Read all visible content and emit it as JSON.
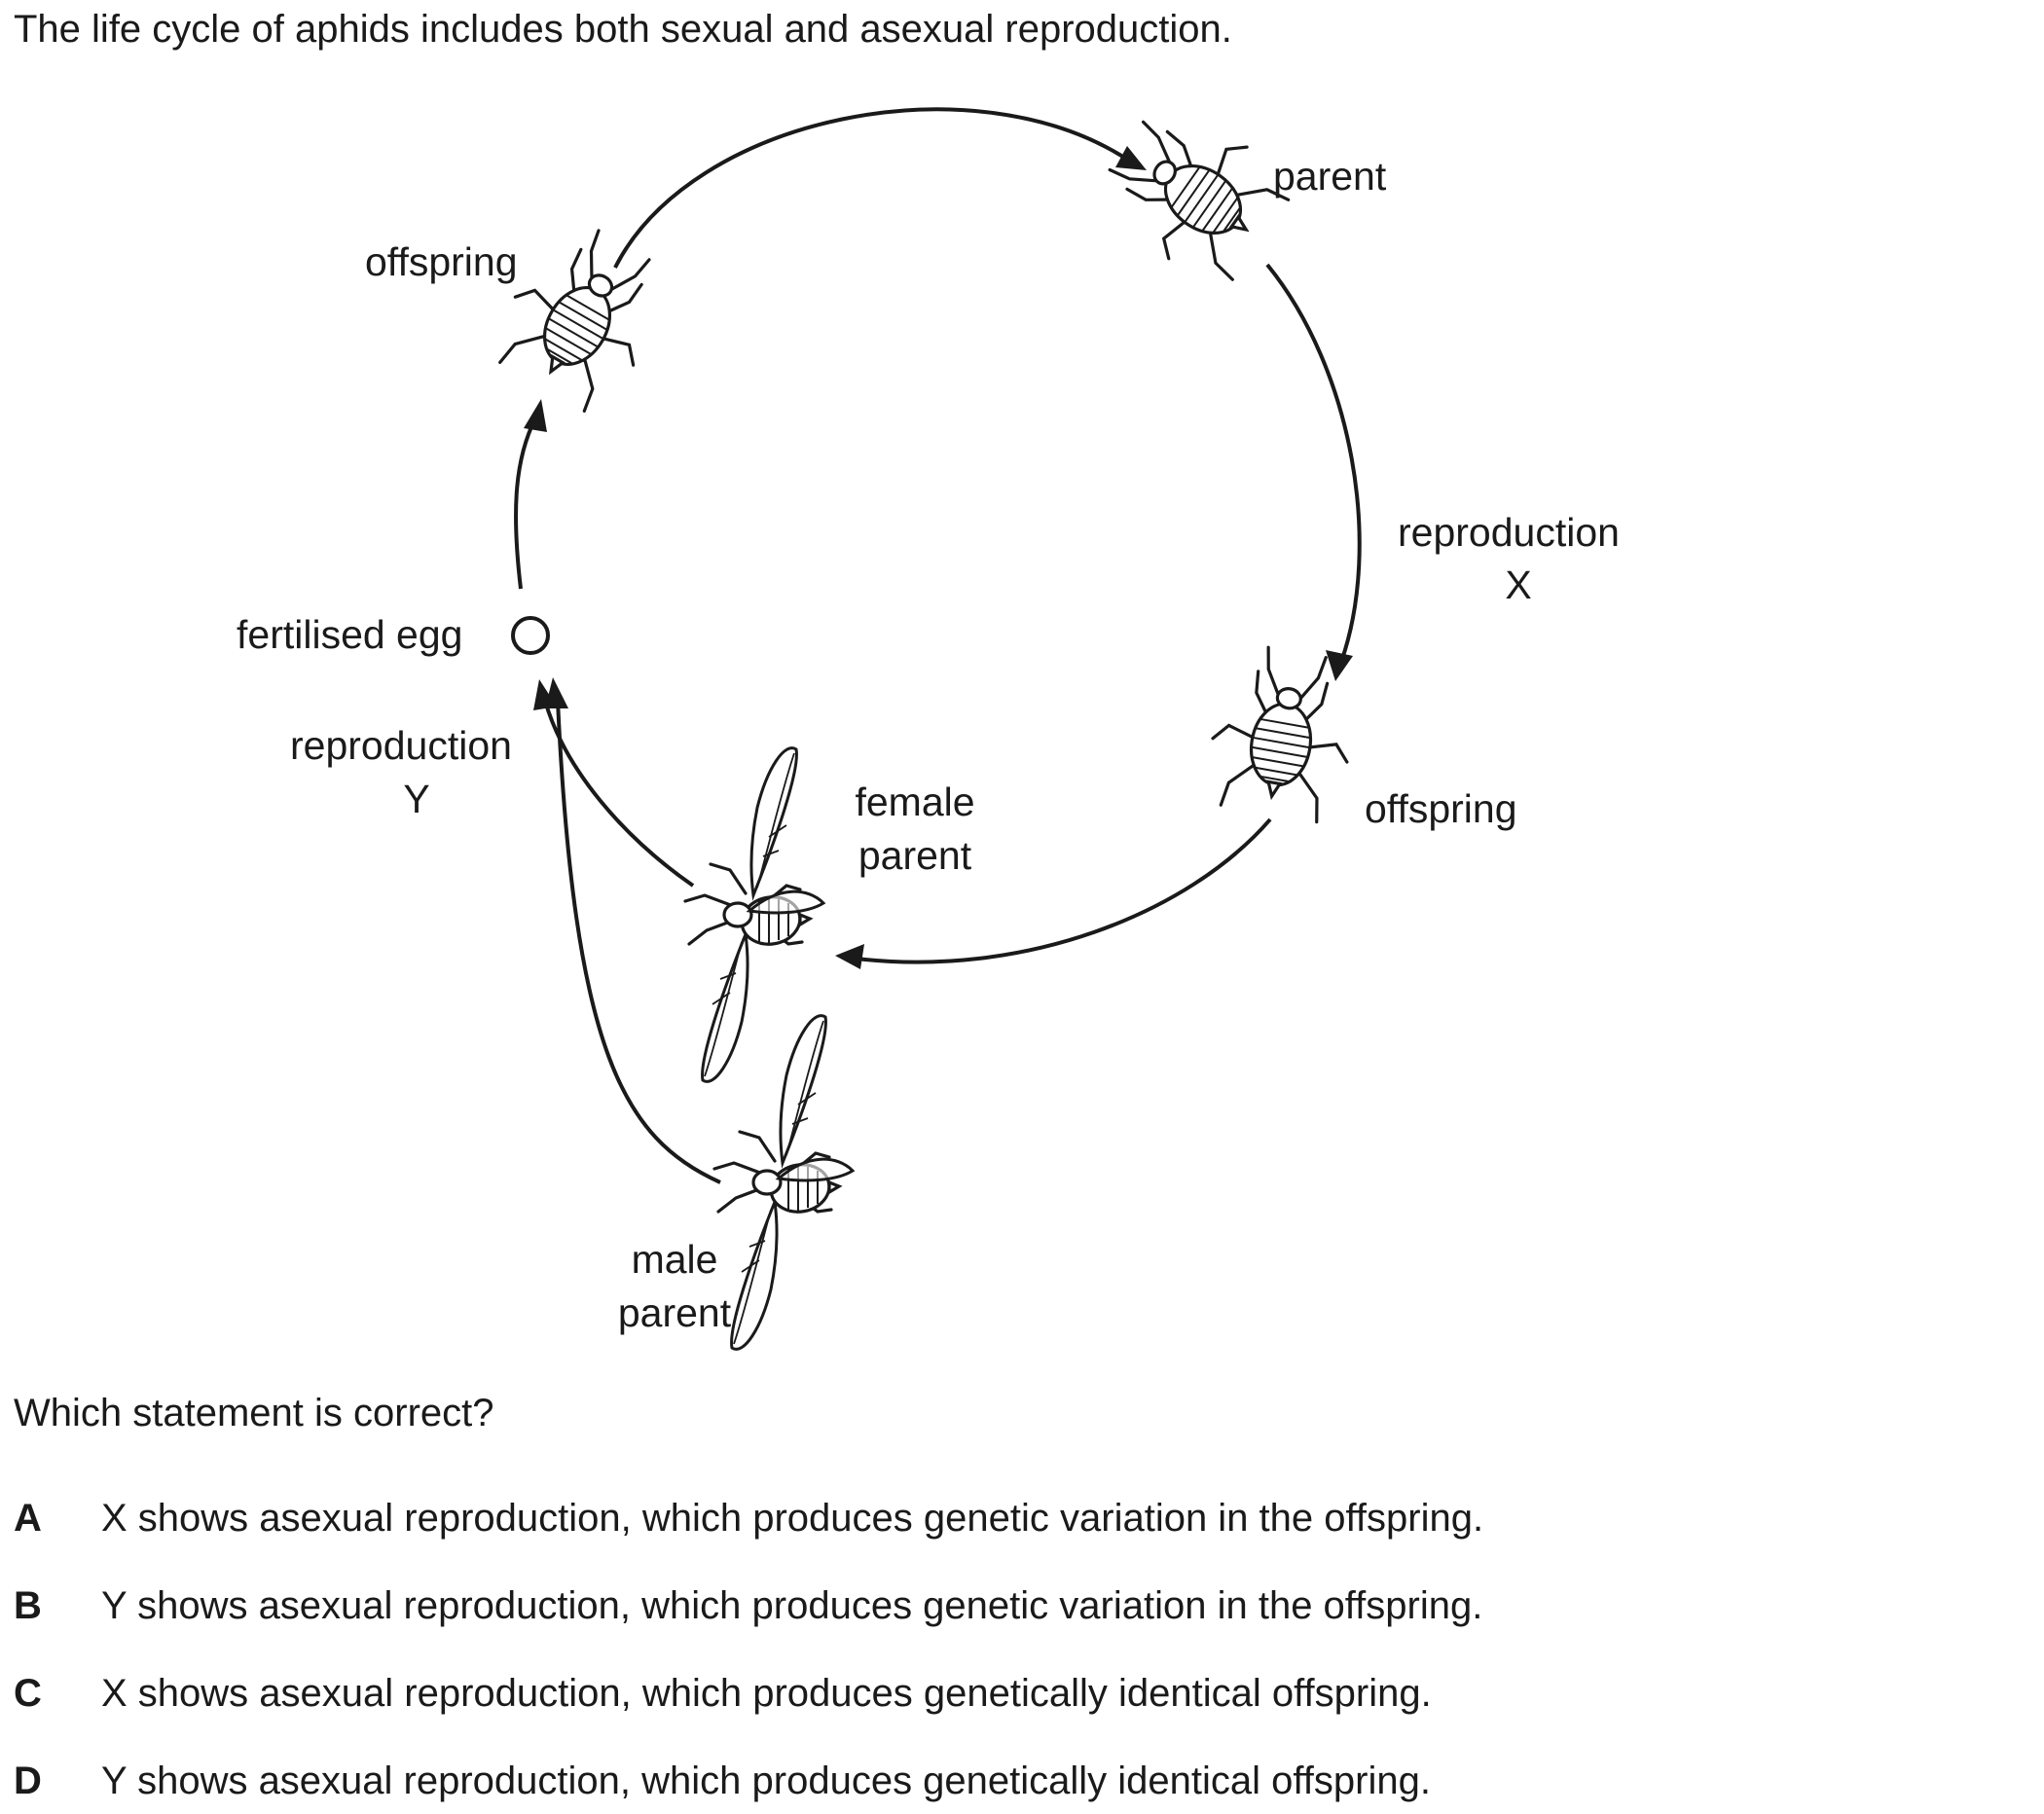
{
  "intro": "The life cycle of aphids includes both sexual and asexual reproduction.",
  "diagram": {
    "labels": {
      "parent": "parent",
      "offspring_top": "offspring",
      "offspring_right": "offspring",
      "reproduction_x": "reproduction",
      "x": "X",
      "fertilised_egg": "fertilised egg",
      "reproduction_y": "reproduction",
      "y": "Y",
      "female_1": "female",
      "female_2": "parent",
      "male_1": "male",
      "male_2": "parent"
    }
  },
  "question": "Which statement is correct?",
  "options": [
    {
      "letter": "A",
      "text": "X shows asexual reproduction, which produces genetic variation in the offspring."
    },
    {
      "letter": "B",
      "text": "Y shows asexual reproduction, which produces genetic variation in the offspring."
    },
    {
      "letter": "C",
      "text": "X shows asexual reproduction, which produces genetically identical offspring."
    },
    {
      "letter": "D",
      "text": "Y shows asexual reproduction, which produces genetically identical offspring."
    }
  ]
}
